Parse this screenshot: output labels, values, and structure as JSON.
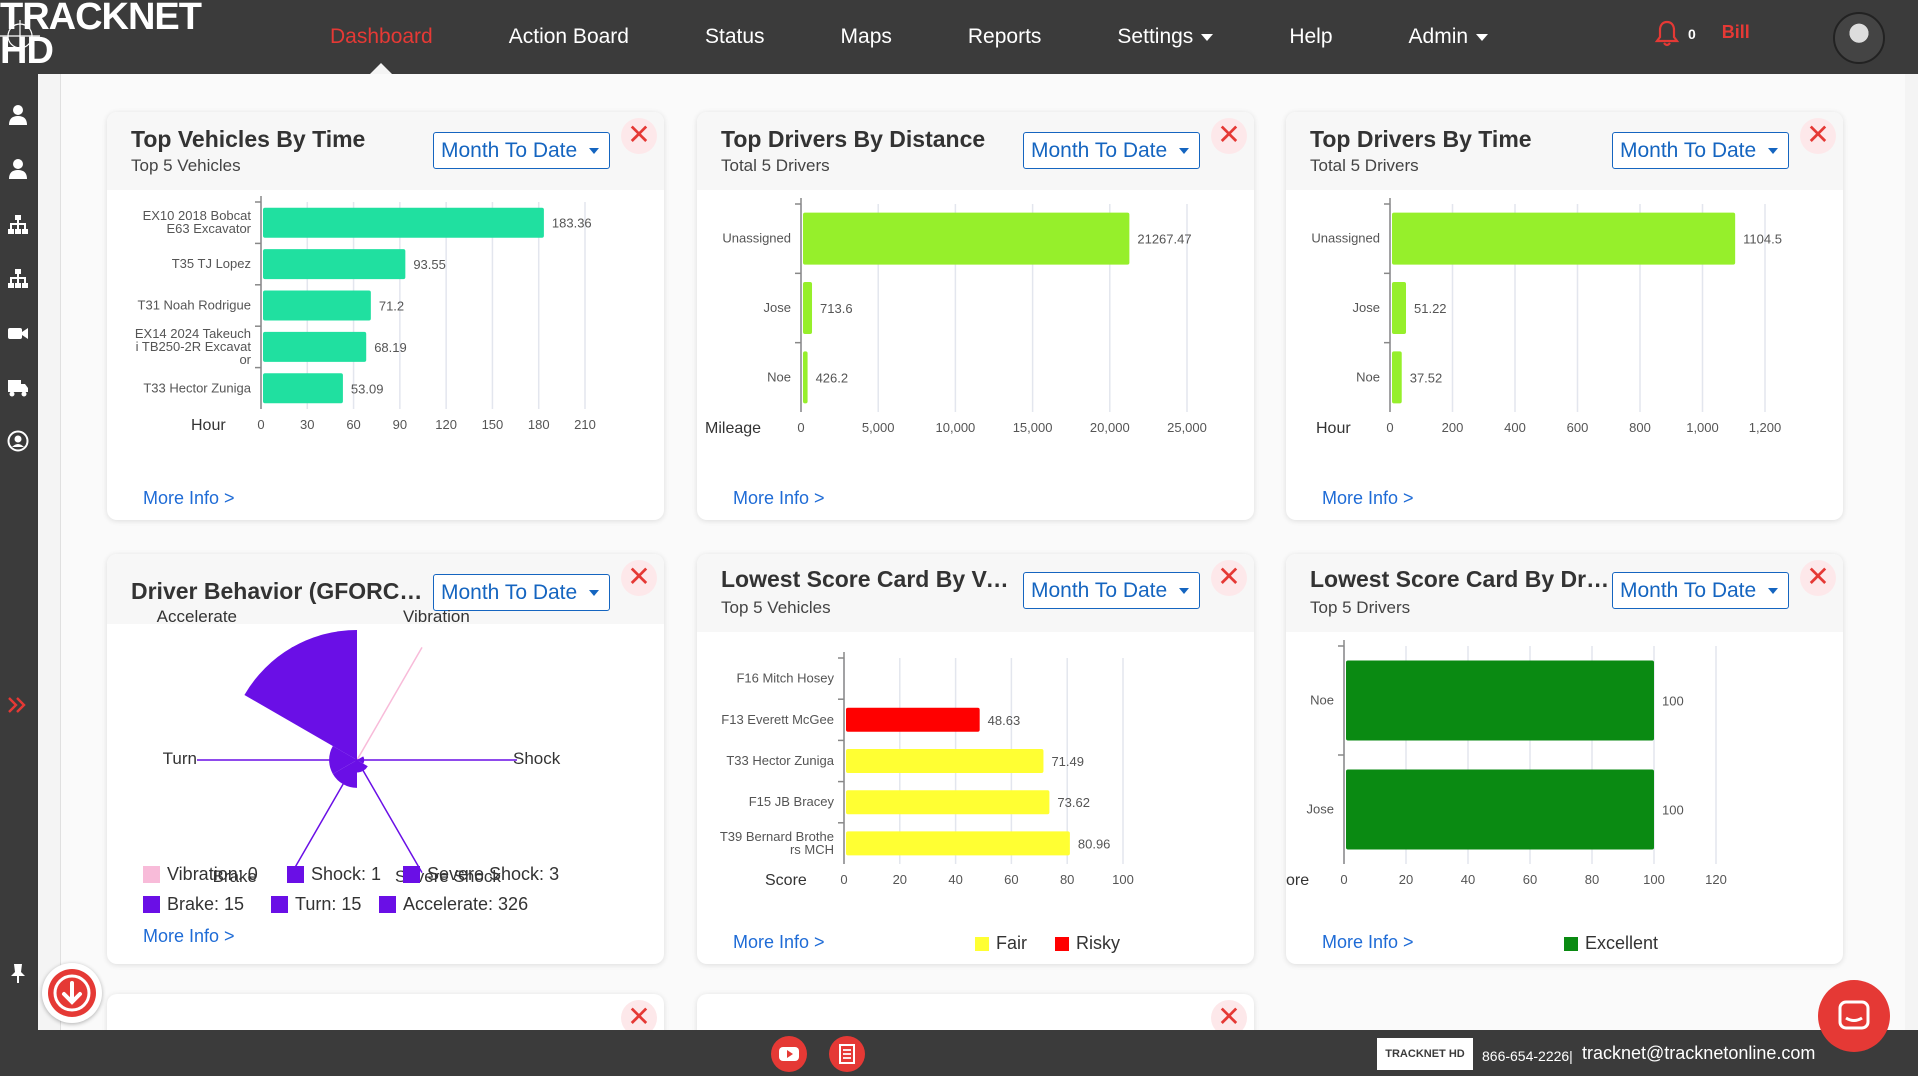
{
  "app": {
    "logo_text": "TRACKNET HD"
  },
  "nav": {
    "items": [
      {
        "label": "Dashboard",
        "active": true,
        "dropdown": false
      },
      {
        "label": "Action Board",
        "active": false,
        "dropdown": false
      },
      {
        "label": "Status",
        "active": false,
        "dropdown": false
      },
      {
        "label": "Maps",
        "active": false,
        "dropdown": false
      },
      {
        "label": "Reports",
        "active": false,
        "dropdown": false
      },
      {
        "label": "Settings",
        "active": false,
        "dropdown": true
      },
      {
        "label": "Help",
        "active": false,
        "dropdown": false
      },
      {
        "label": "Admin",
        "active": false,
        "dropdown": true
      }
    ],
    "notification_count": "0",
    "user_name": "Bill"
  },
  "sidebar": {
    "icons": [
      "user-icon",
      "users-icon",
      "org-chart-icon",
      "hierarchy-icon",
      "camera-icon",
      "truck-icon",
      "account-circle-icon",
      "double-chevron-icon",
      "pin-icon"
    ]
  },
  "colors": {
    "accent_red": "#e53935",
    "link_blue": "#1e6bd6",
    "teal_bar": "#20e0a0",
    "lime_bar": "#96ef2b",
    "purple": "#6a0fe6",
    "pink": "#f8bbd9",
    "fair_yellow": "#ffff33",
    "risky_red": "#ff0000",
    "excellent_green": "#0a8a12"
  },
  "common": {
    "period": "Month To Date",
    "more_info": "More Info >",
    "close_glyph": "✕"
  },
  "cards": {
    "top_vehicles_time": {
      "title": "Top Vehicles By Time",
      "subtitle": "Top 5 Vehicles",
      "chart_data": {
        "type": "bar",
        "orientation": "horizontal",
        "categories": [
          [
            "EX10  2018 Bobcat",
            "E63 Excavator"
          ],
          [
            "T35  TJ Lopez"
          ],
          [
            "T31  Noah Rodrigue"
          ],
          [
            "EX14  2024 Takeuch",
            "i TB250-2R Excavat",
            "or"
          ],
          [
            "T33  Hector Zuniga"
          ]
        ],
        "values": [
          183.36,
          93.55,
          71.2,
          68.19,
          53.09
        ],
        "value_labels": [
          "183.36",
          "93.55",
          "71.2",
          "68.19",
          "53.09"
        ],
        "xlabel": "Hour",
        "xlim": [
          0,
          210
        ],
        "ticks": [
          "0",
          "30",
          "60",
          "90",
          "120",
          "150",
          "180",
          "210"
        ],
        "color": "#20e0a0"
      }
    },
    "top_drivers_distance": {
      "title": "Top Drivers By Distance",
      "subtitle": "Total 5 Drivers",
      "chart_data": {
        "type": "bar",
        "orientation": "horizontal",
        "categories": [
          [
            "Unassigned"
          ],
          [
            "Jose"
          ],
          [
            "Noe"
          ]
        ],
        "values": [
          21267.47,
          713.6,
          426.2
        ],
        "value_labels": [
          "21267.47",
          "713.6",
          "426.2"
        ],
        "xlabel": "Mileage",
        "xlim": [
          0,
          25000
        ],
        "ticks": [
          "0",
          "5,000",
          "10,000",
          "15,000",
          "20,000",
          "25,000"
        ],
        "color": "#96ef2b"
      }
    },
    "top_drivers_time": {
      "title": "Top Drivers By Time",
      "subtitle": "Total 5 Drivers",
      "chart_data": {
        "type": "bar",
        "orientation": "horizontal",
        "categories": [
          [
            "Unassigned"
          ],
          [
            "Jose"
          ],
          [
            "Noe"
          ]
        ],
        "values": [
          1104.5,
          51.22,
          37.52
        ],
        "value_labels": [
          "1104.5",
          "51.22",
          "37.52"
        ],
        "xlabel": "Hour",
        "xlim": [
          0,
          1200
        ],
        "ticks": [
          "0",
          "200",
          "400",
          "600",
          "800",
          "1,000",
          "1,200"
        ],
        "color": "#96ef2b"
      }
    },
    "driver_behavior": {
      "title": "Driver Behavior (GFORCE ...",
      "chart_data": {
        "type": "pie",
        "variant": "polar-area",
        "categories": [
          "Accelerate",
          "Vibration",
          "Shock",
          "Severe Shock",
          "Brake",
          "Turn"
        ],
        "values": [
          326,
          0,
          1,
          3,
          15,
          15
        ],
        "legend": [
          {
            "label": "Vibration: 0",
            "color": "#f8bbd9"
          },
          {
            "label": "Shock: 1",
            "color": "#6a0fe6"
          },
          {
            "label": "Severe Shock: 3",
            "color": "#6a0fe6"
          },
          {
            "label": "Brake: 15",
            "color": "#6a0fe6"
          },
          {
            "label": "Turn: 15",
            "color": "#6a0fe6"
          },
          {
            "label": "Accelerate: 326",
            "color": "#6a0fe6"
          }
        ]
      }
    },
    "lowest_score_vehicle": {
      "title": "Lowest Score Card By Veh...",
      "subtitle": "Top 5 Vehicles",
      "chart_data": {
        "type": "bar",
        "orientation": "horizontal",
        "categories": [
          [
            "F16 Mitch Hosey"
          ],
          [
            "F13 Everett McGee"
          ],
          [
            "T33  Hector Zuniga"
          ],
          [
            "F15 JB Bracey"
          ],
          [
            "T39 Bernard Brothe",
            "rs MCH"
          ]
        ],
        "values": [
          0,
          48.63,
          71.49,
          73.62,
          80.96
        ],
        "value_labels": [
          "",
          "48.63",
          "71.49",
          "73.62",
          "80.96"
        ],
        "bar_colors": [
          "",
          "#ff0000",
          "#ffff33",
          "#ffff33",
          "#ffff33"
        ],
        "xlabel": "Score",
        "xlim": [
          0,
          100
        ],
        "ticks": [
          "0",
          "20",
          "40",
          "60",
          "80",
          "100"
        ],
        "legend": [
          {
            "label": "Fair",
            "color": "#ffff33"
          },
          {
            "label": "Risky",
            "color": "#ff0000"
          }
        ]
      }
    },
    "lowest_score_driver": {
      "title": "Lowest Score Card By Driv...",
      "subtitle": "Top 5 Drivers",
      "chart_data": {
        "type": "bar",
        "orientation": "horizontal",
        "categories": [
          [
            "Noe"
          ],
          [
            "Jose"
          ]
        ],
        "values": [
          100,
          100
        ],
        "value_labels": [
          "100",
          "100"
        ],
        "xlabel": "ore",
        "xlim": [
          0,
          120
        ],
        "ticks": [
          "0",
          "20",
          "40",
          "60",
          "80",
          "100",
          "120"
        ],
        "color": "#0a8a12",
        "legend": [
          {
            "label": "Excellent",
            "color": "#0a8a12"
          }
        ]
      }
    }
  },
  "footer": {
    "logo_text": "TRACKNET HD",
    "phone": "866-654-2226|",
    "email": "tracknet@tracknetonline.com"
  }
}
